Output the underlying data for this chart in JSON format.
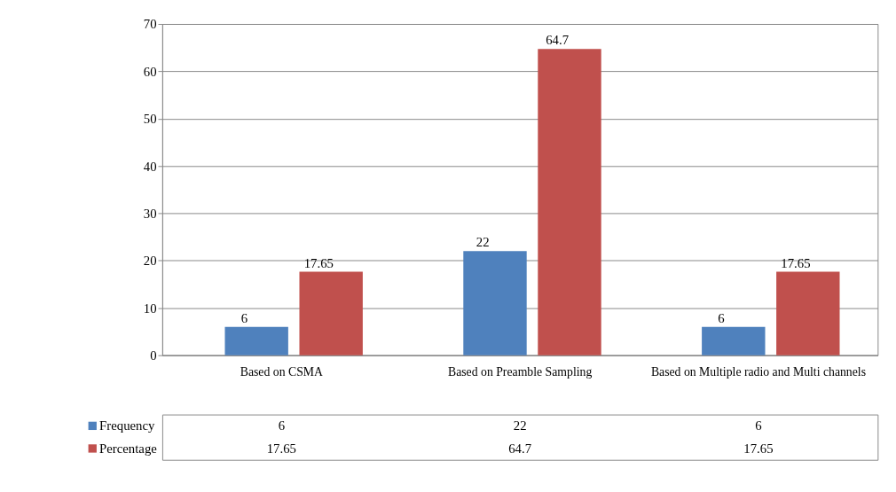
{
  "chart_data": {
    "type": "bar",
    "categories": [
      "Based on CSMA",
      "Based on Preamble Sampling",
      "Based on Multiple radio and Multi channels"
    ],
    "series": [
      {
        "name": "Frequency",
        "color": "#4f81bd",
        "values": [
          6,
          22,
          6
        ],
        "value_labels": [
          "6",
          "22",
          "6"
        ]
      },
      {
        "name": "Percentage",
        "color": "#c0504d",
        "values": [
          17.65,
          64.7,
          17.65
        ],
        "value_labels": [
          "17.65",
          "64.7",
          "17.65"
        ]
      }
    ],
    "ylim": [
      0,
      70
    ],
    "yticks": [
      0,
      10,
      20,
      30,
      40,
      50,
      60,
      70
    ],
    "annotations": [
      "6",
      "22",
      "6",
      "17.65",
      "64.7",
      "17.65"
    ],
    "grid": "y",
    "legend": "bottom left"
  }
}
